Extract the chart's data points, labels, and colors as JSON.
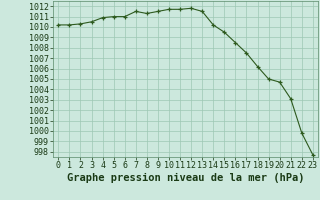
{
  "x": [
    0,
    1,
    2,
    3,
    4,
    5,
    6,
    7,
    8,
    9,
    10,
    11,
    12,
    13,
    14,
    15,
    16,
    17,
    18,
    19,
    20,
    21,
    22,
    23
  ],
  "y": [
    1010.2,
    1010.2,
    1010.3,
    1010.5,
    1010.9,
    1011.0,
    1011.0,
    1011.5,
    1011.3,
    1011.5,
    1011.7,
    1011.7,
    1011.8,
    1011.5,
    1010.2,
    1009.5,
    1008.5,
    1007.5,
    1006.2,
    1005.0,
    1004.7,
    1003.1,
    999.8,
    997.7
  ],
  "line_color": "#2d5a1e",
  "marker_color": "#2d5a1e",
  "bg_color": "#cce8dd",
  "grid_color": "#9dc8b4",
  "xlabel": "Graphe pression niveau de la mer (hPa)",
  "xlabel_fontsize": 7.5,
  "tick_fontsize": 6,
  "ylim": [
    997.5,
    1012.5
  ],
  "xlim": [
    -0.5,
    23.5
  ],
  "yticks": [
    998,
    999,
    1000,
    1001,
    1002,
    1003,
    1004,
    1005,
    1006,
    1007,
    1008,
    1009,
    1010,
    1011,
    1012
  ],
  "xticks": [
    0,
    1,
    2,
    3,
    4,
    5,
    6,
    7,
    8,
    9,
    10,
    11,
    12,
    13,
    14,
    15,
    16,
    17,
    18,
    19,
    20,
    21,
    22,
    23
  ]
}
